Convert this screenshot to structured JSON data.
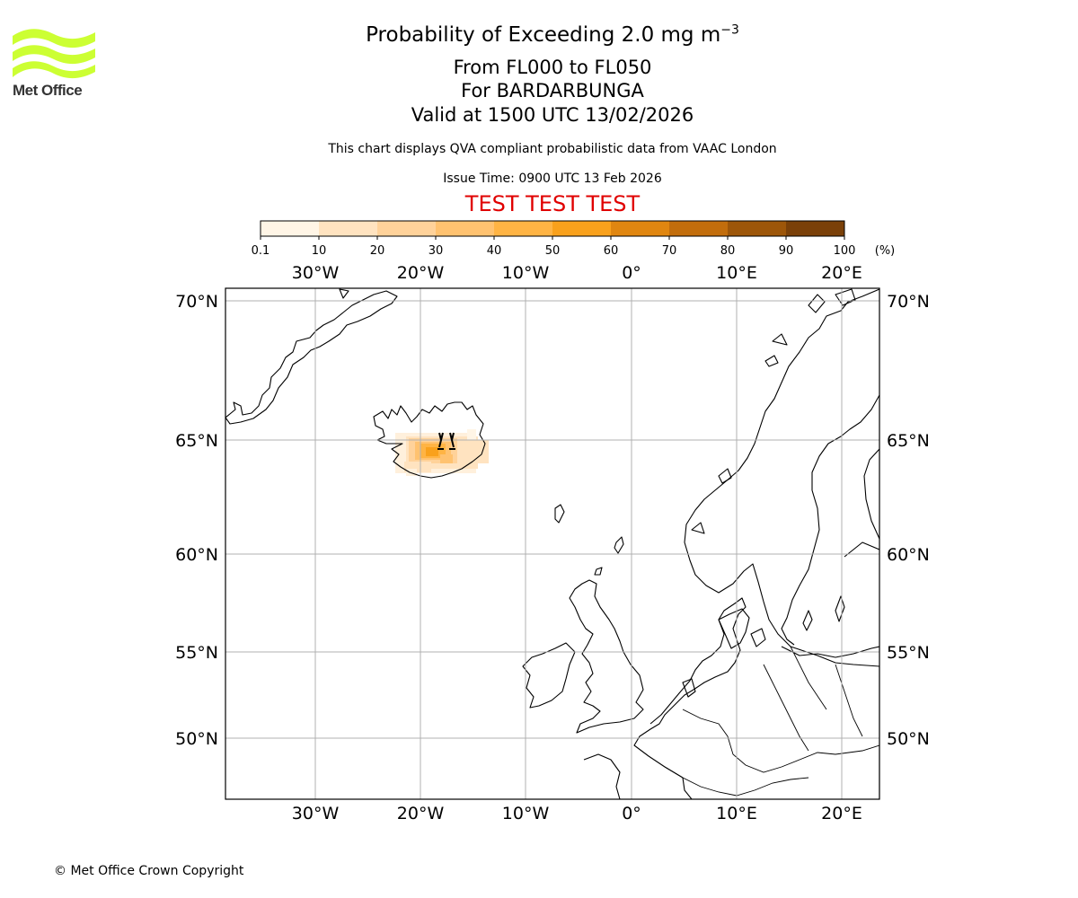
{
  "logo": {
    "text": "Met Office",
    "icon": "met-office-wave-logo",
    "color": "#ccff33"
  },
  "title": {
    "main": "Probability of Exceeding 2.0 mg m",
    "superscript": "−3"
  },
  "subtitles": [
    "From FL000 to FL050",
    "For BARDARBUNGA",
    "Valid at 1500 UTC 13/02/2026"
  ],
  "description": "This chart displays QVA compliant probabilistic data from VAAC London",
  "issue_time": "Issue Time: 0900 UTC 13 Feb 2026",
  "test_banner": {
    "text": "TEST TEST TEST",
    "color": "#e00000"
  },
  "colorbar": {
    "ticks": [
      "0.1",
      "10",
      "20",
      "30",
      "40",
      "50",
      "60",
      "70",
      "80",
      "90",
      "100"
    ],
    "unit": "(%)",
    "colors": [
      "#fff5e6",
      "#ffe3c0",
      "#ffd29a",
      "#ffc270",
      "#ffb444",
      "#f9a11c",
      "#e08610",
      "#c26d0c",
      "#9d5609",
      "#7a4008"
    ]
  },
  "map": {
    "lon_labels_top": [
      "30°W",
      "20°W",
      "10°W",
      "0°",
      "10°E",
      "20°E"
    ],
    "lon_labels_bottom": [
      "30°W",
      "20°W",
      "10°W",
      "0°",
      "10°E",
      "20°E"
    ],
    "lat_labels_left": [
      "70°N",
      "65°N",
      "60°N",
      "55°N",
      "50°N"
    ],
    "lat_labels_right": [
      "70°N",
      "65°N",
      "60°N",
      "55°N",
      "50°N"
    ],
    "volcano": {
      "name": "BARDARBUNGA",
      "icon": "volcano-icon"
    }
  },
  "copyright": "© Met Office Crown Copyright"
}
